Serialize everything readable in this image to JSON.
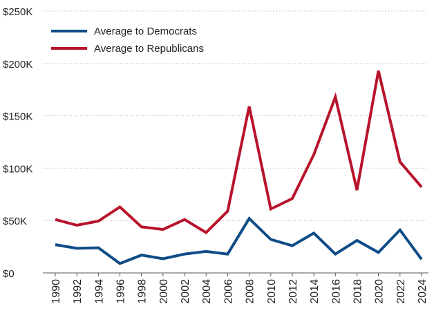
{
  "chart_data": {
    "type": "line",
    "title": "",
    "xlabel": "",
    "ylabel": "",
    "x": [
      "1990",
      "1992",
      "1994",
      "1996",
      "1998",
      "2000",
      "2002",
      "2004",
      "2006",
      "2008",
      "2010",
      "2012",
      "2014",
      "2016",
      "2018",
      "2020",
      "2022",
      "2024"
    ],
    "series": [
      {
        "name": "Average to Democrats",
        "color": "#0e4c87",
        "values": [
          27000,
          23500,
          24000,
          9000,
          17000,
          13500,
          18000,
          20500,
          18000,
          52000,
          32000,
          26000,
          38000,
          18000,
          31000,
          19500,
          41000,
          13000
        ]
      },
      {
        "name": "Average to Republicans",
        "color": "#b8142c",
        "values": [
          51000,
          45500,
          49500,
          63000,
          44000,
          41500,
          51000,
          38500,
          59000,
          159000,
          61000,
          71000,
          113000,
          168000,
          79000,
          193000,
          106000,
          82000
        ]
      }
    ],
    "ylim": [
      0,
      250000
    ],
    "yticks": [
      0,
      50000,
      100000,
      150000,
      200000,
      250000
    ],
    "ytick_labels": [
      "$0",
      "$50K",
      "$100K",
      "$150K",
      "$200K",
      "$250K"
    ],
    "grid": "horizontal-dotted",
    "legend_position": "top-left"
  }
}
